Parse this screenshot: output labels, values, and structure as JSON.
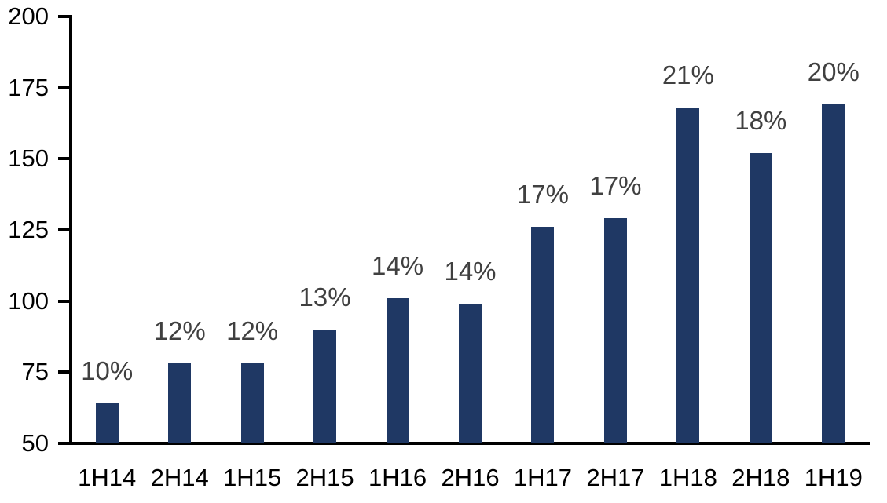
{
  "chart_data": {
    "type": "bar",
    "title": "",
    "xlabel": "",
    "ylabel": "",
    "categories": [
      "1H14",
      "2H14",
      "1H15",
      "2H15",
      "1H16",
      "2H16",
      "1H17",
      "2H17",
      "1H18",
      "2H18",
      "1H19"
    ],
    "values": [
      64,
      78,
      78,
      90,
      101,
      99,
      126,
      129,
      168,
      152,
      169
    ],
    "bar_labels": [
      "10%",
      "12%",
      "12%",
      "13%",
      "14%",
      "14%",
      "17%",
      "17%",
      "21%",
      "18%",
      "20%"
    ],
    "y_ticks": [
      50,
      75,
      100,
      125,
      150,
      175,
      200
    ],
    "ylim": [
      50,
      200
    ],
    "grid": false,
    "legend": false,
    "colors": {
      "bar": "#1f3864",
      "bar_label": "#404040",
      "axis": "#000000",
      "tick_label": "#000000",
      "background": "#ffffff"
    }
  }
}
